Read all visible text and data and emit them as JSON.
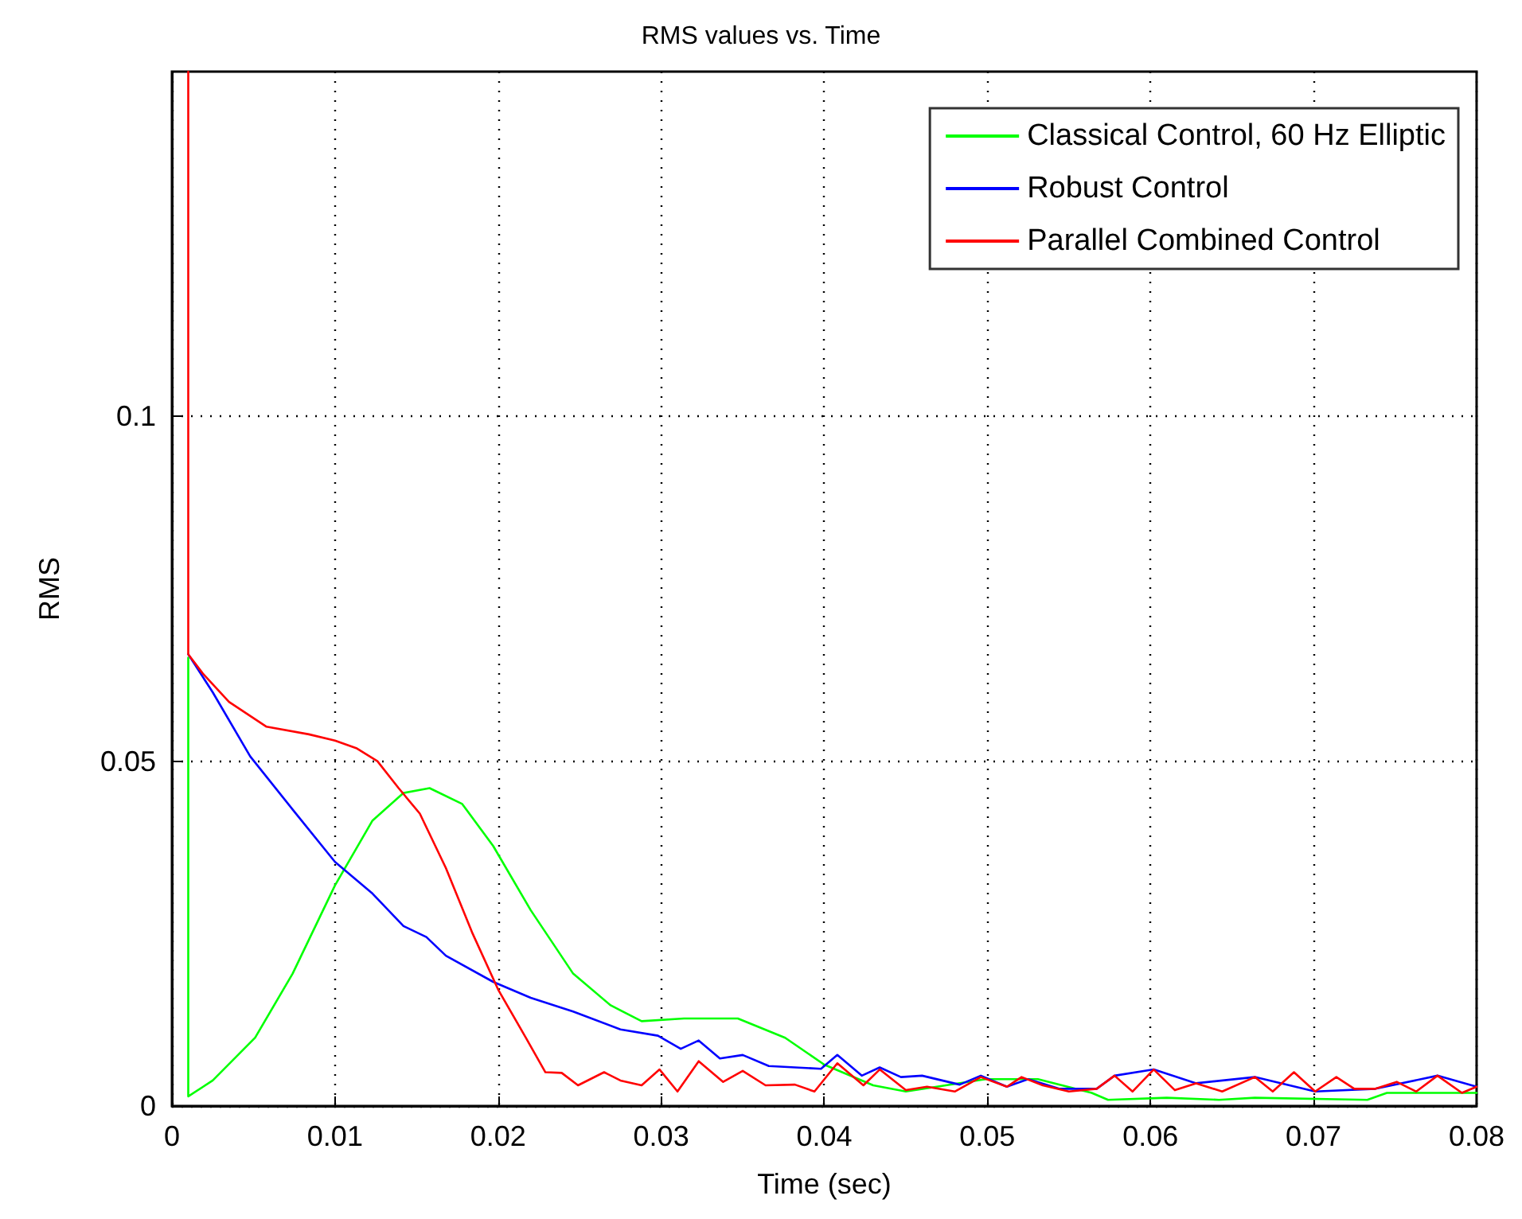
{
  "chart_data": {
    "type": "line",
    "title": "RMS values vs. Time",
    "xlabel": "Time (sec)",
    "ylabel": "RMS",
    "xlim": [
      0,
      0.08
    ],
    "ylim": [
      0,
      0.15
    ],
    "xticks": [
      0,
      0.01,
      0.02,
      0.03,
      0.04,
      0.05,
      0.06,
      0.07,
      0.08
    ],
    "yticks": [
      0,
      0.05,
      0.1
    ],
    "grid": true,
    "legend": "top right",
    "line_style": "solid",
    "marker": "none",
    "series": [
      {
        "name": "Classical Control, 60 Hz Elliptic",
        "color": "#00ff00",
        "x": [
          0.001,
          0.001,
          0.0025,
          0.0051,
          0.0074,
          0.01,
          0.0123,
          0.0142,
          0.0158,
          0.0178,
          0.0197,
          0.022,
          0.0246,
          0.0269,
          0.0288,
          0.0314,
          0.0347,
          0.0376,
          0.04,
          0.043,
          0.045,
          0.0499,
          0.0531,
          0.0564,
          0.0574,
          0.061,
          0.0642,
          0.0664,
          0.0733,
          0.0745,
          0.08
        ],
        "values": [
          0.065,
          0.0014,
          0.0037,
          0.0099,
          0.0192,
          0.032,
          0.0414,
          0.0454,
          0.0461,
          0.0438,
          0.0377,
          0.0284,
          0.0192,
          0.0146,
          0.0123,
          0.0127,
          0.0127,
          0.0099,
          0.006,
          0.003,
          0.0021,
          0.0039,
          0.0039,
          0.0019,
          0.0009,
          0.0012,
          0.0009,
          0.0012,
          0.0009,
          0.0019,
          0.0019
        ]
      },
      {
        "name": "Robust Control",
        "color": "#0000ff",
        "x": [
          0.001,
          0.0025,
          0.0048,
          0.0074,
          0.01,
          0.0123,
          0.0142,
          0.0156,
          0.0168,
          0.0197,
          0.022,
          0.0246,
          0.0275,
          0.0298,
          0.0312,
          0.0323,
          0.0336,
          0.035,
          0.0366,
          0.0398,
          0.0408,
          0.0423,
          0.0434,
          0.0447,
          0.046,
          0.0483,
          0.0496,
          0.0512,
          0.0525,
          0.0544,
          0.0567,
          0.0578,
          0.0602,
          0.0628,
          0.0664,
          0.0701,
          0.0738,
          0.0776,
          0.08
        ],
        "values": [
          0.0655,
          0.06,
          0.0507,
          0.043,
          0.0354,
          0.0308,
          0.0261,
          0.0245,
          0.0218,
          0.018,
          0.0157,
          0.0137,
          0.0111,
          0.0102,
          0.0083,
          0.0095,
          0.0069,
          0.0074,
          0.0058,
          0.0054,
          0.0074,
          0.0044,
          0.0056,
          0.0042,
          0.0044,
          0.0031,
          0.0044,
          0.0028,
          0.0039,
          0.0025,
          0.0025,
          0.0044,
          0.0053,
          0.0033,
          0.0042,
          0.0021,
          0.0025,
          0.0044,
          0.0028
        ]
      },
      {
        "name": "Parallel Combined Control",
        "color": "#ff0000",
        "x": [
          0.001,
          0.001,
          0.0019,
          0.0035,
          0.0058,
          0.0084,
          0.01,
          0.0113,
          0.0126,
          0.0139,
          0.0152,
          0.0168,
          0.0184,
          0.02,
          0.0217,
          0.0229,
          0.0239,
          0.0249,
          0.0265,
          0.0275,
          0.0288,
          0.0299,
          0.031,
          0.0323,
          0.0338,
          0.035,
          0.0364,
          0.0382,
          0.0394,
          0.0408,
          0.0424,
          0.0434,
          0.045,
          0.0463,
          0.048,
          0.0496,
          0.0512,
          0.0521,
          0.0534,
          0.055,
          0.0567,
          0.0578,
          0.0589,
          0.0602,
          0.0615,
          0.0628,
          0.0644,
          0.0664,
          0.0675,
          0.0688,
          0.0701,
          0.0714,
          0.0725,
          0.0738,
          0.0751,
          0.0763,
          0.0776,
          0.0791,
          0.08
        ],
        "values": [
          0.15,
          0.0655,
          0.0627,
          0.0586,
          0.055,
          0.0539,
          0.053,
          0.0519,
          0.05,
          0.0461,
          0.0424,
          0.0345,
          0.0252,
          0.0169,
          0.0099,
          0.0049,
          0.0048,
          0.003,
          0.0049,
          0.0037,
          0.003,
          0.0053,
          0.0021,
          0.0065,
          0.0035,
          0.0051,
          0.003,
          0.0031,
          0.0021,
          0.0062,
          0.003,
          0.0053,
          0.0023,
          0.0028,
          0.0021,
          0.0042,
          0.0028,
          0.0042,
          0.003,
          0.0021,
          0.0025,
          0.0044,
          0.0021,
          0.0053,
          0.0023,
          0.0033,
          0.0021,
          0.0042,
          0.0021,
          0.0049,
          0.0021,
          0.0042,
          0.0025,
          0.0025,
          0.0035,
          0.0021,
          0.0044,
          0.0019,
          0.0028
        ]
      }
    ]
  }
}
